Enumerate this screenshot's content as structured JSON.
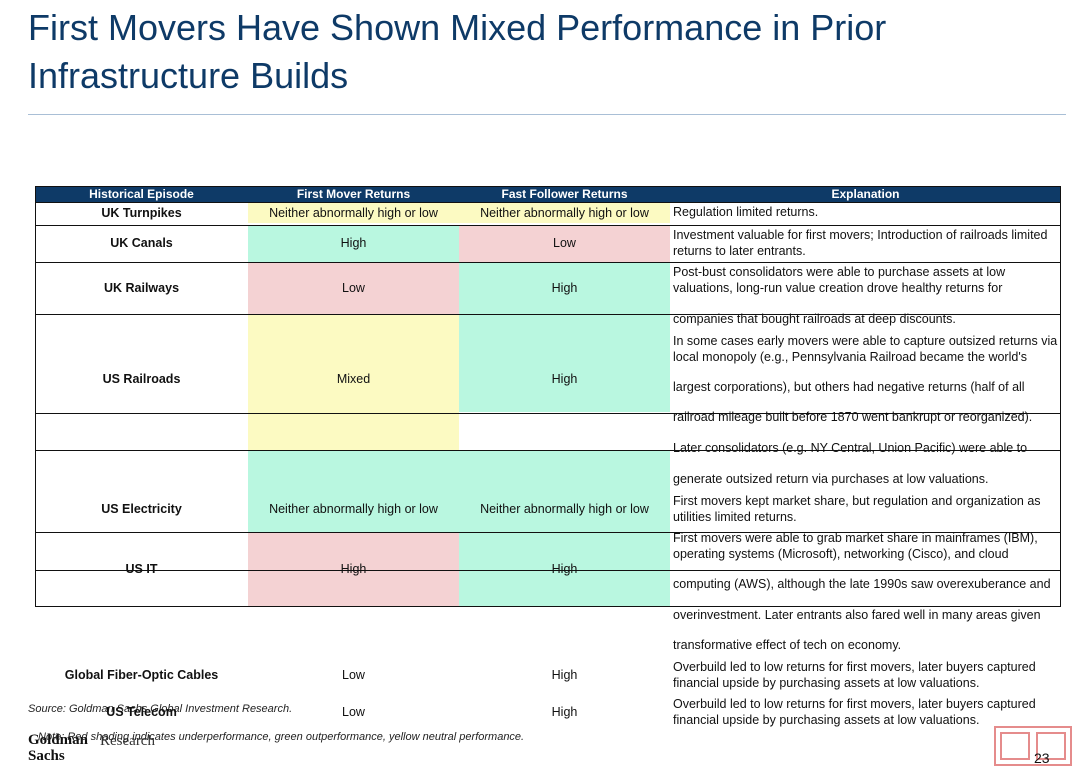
{
  "title": {
    "line1": "First Movers Have Shown Mixed Performance in Prior",
    "line2": "Infrastructure Builds"
  },
  "table": {
    "headers": [
      "Historical Episode",
      "First Mover Returns",
      "Fast Follower Returns",
      "Explanation"
    ],
    "rows": [
      {
        "episode": "UK Turnpikes",
        "first_mover": "Neither abnormally high or low",
        "fast_follower": "Neither abnormally high or low",
        "explanation": [
          "Regulation limited returns."
        ]
      },
      {
        "episode": "UK Canals",
        "first_mover": "High",
        "fast_follower": "Low",
        "explanation": [
          "Investment valuable for first movers; Introduction of railroads limited",
          "returns to later entrants."
        ]
      },
      {
        "episode": "UK Railways",
        "first_mover": "Low",
        "fast_follower": "High",
        "explanation": [
          "Post-bust consolidators were able to purchase assets at low",
          "valuations, long-run value creation drove healthy returns for",
          "companies that bought railroads at deep discounts."
        ]
      },
      {
        "episode": "US Railroads",
        "first_mover": "Mixed",
        "fast_follower": "High",
        "explanation": [
          "In some cases early movers were able to capture outsized returns via",
          "local monopoly (e.g., Pennsylvania Railroad became the world's",
          "largest corporations), but others had negative returns (half of all",
          "railroad mileage built before 1870 went bankrupt or reorganized).",
          "Later consolidators (e.g. NY Central, Union Pacific) were able to",
          "generate outsized return via purchases at low valuations."
        ]
      },
      {
        "episode": "US Electricity",
        "first_mover": "Neither abnormally high or low",
        "fast_follower": "Neither abnormally high or low",
        "explanation": [
          "First movers kept market share, but regulation and organization as",
          "utilities limited returns."
        ]
      },
      {
        "episode": "US IT",
        "first_mover": "High",
        "fast_follower": "High",
        "explanation": [
          "First movers were able to grab market share in mainframes (IBM),",
          "operating systems (Microsoft), networking (Cisco), and cloud",
          "computing (AWS), although the late 1990s saw overexuberance and",
          "overinvestment.  Later entrants also fared well in many areas given",
          "transformative effect of tech on economy."
        ]
      },
      {
        "episode": "Global Fiber-Optic Cables",
        "first_mover": "Low",
        "fast_follower": "High",
        "explanation": [
          "Overbuild led to low returns for first movers, later buyers captured",
          "financial upside by purchasing assets at low valuations."
        ]
      },
      {
        "episode": "US Telecom",
        "first_mover": "Low",
        "fast_follower": "High",
        "explanation": [
          "Overbuild led to low returns for first movers, later buyers captured",
          "financial upside by purchasing assets at low valuations."
        ]
      }
    ]
  },
  "footer": {
    "source": "Source: Goldman Sachs Global Investment Research.",
    "note": "Note: Red shading indicates underperformance, green outperformance, yellow neutral performance.",
    "logo_line1": "Goldman",
    "logo_line2": "Sachs",
    "research": "Research",
    "page_number": "23"
  },
  "colors": {
    "title": "#0e3a67",
    "header_bg": "#0e3a67",
    "green": "#b9f7e0",
    "red": "#f4d2d3",
    "yellow": "#fcfac2",
    "stamp": "#e58c8c"
  }
}
